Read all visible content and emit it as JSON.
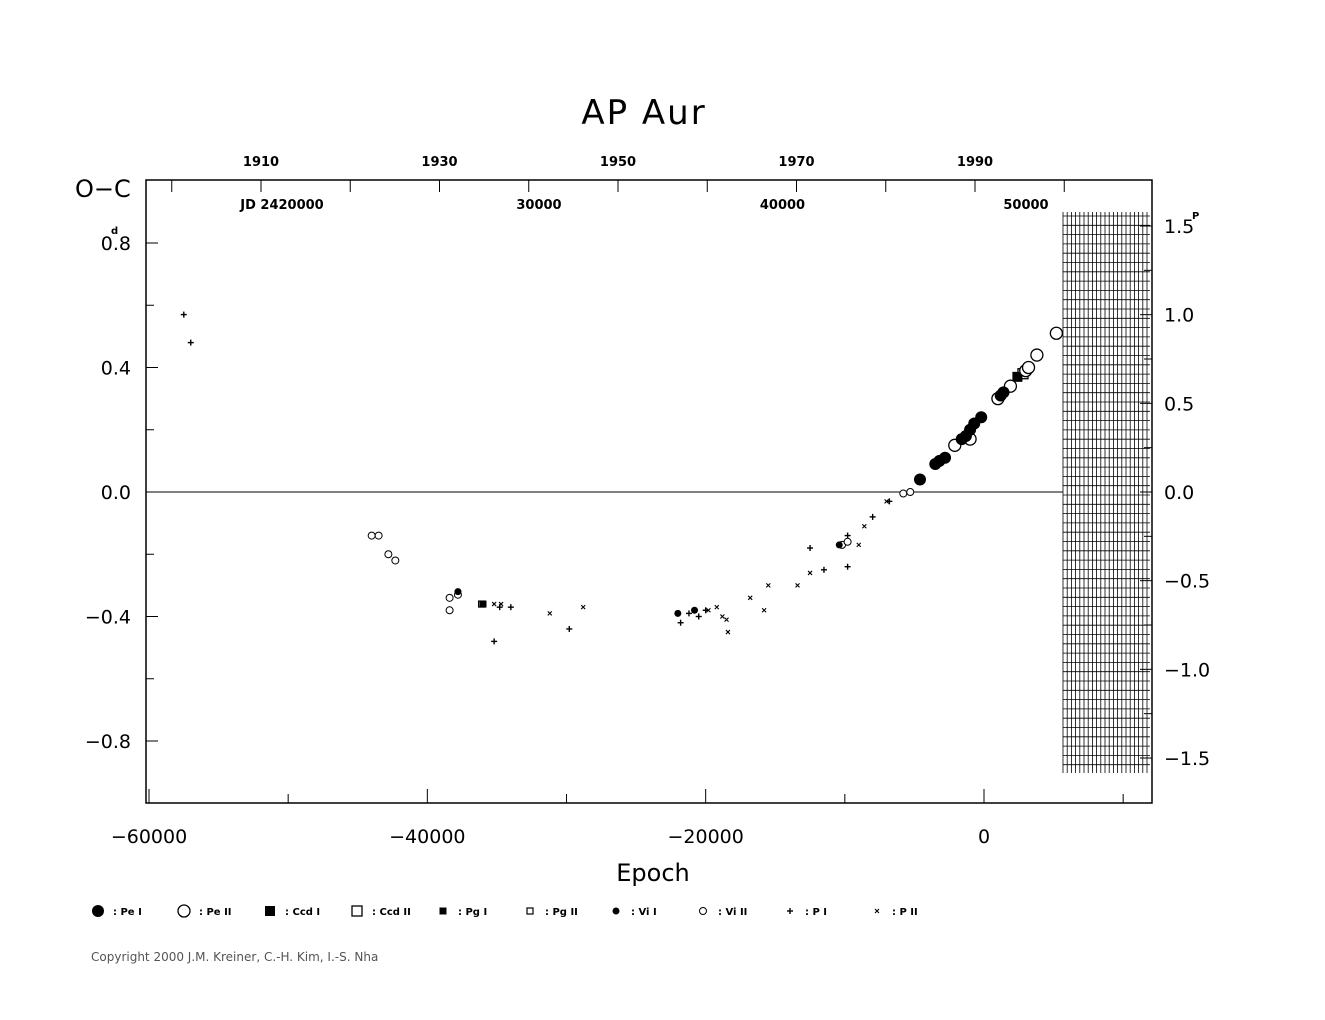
{
  "chart_data": {
    "type": "scatter",
    "title": "AP  Aur",
    "xlabel": "Epoch",
    "ylabel": "O−C",
    "y_unit": "d",
    "y2_unit": "P",
    "xlim": [
      -60000,
      12000
    ],
    "ylim": [
      -1.0,
      1.0
    ],
    "x_ticks": [
      -60000,
      -40000,
      -20000,
      0
    ],
    "x_tick_labels": [
      "−60000",
      "−40000",
      "−20000",
      "0"
    ],
    "y_ticks": [
      -0.8,
      -0.4,
      0.0,
      0.4,
      0.8
    ],
    "y_tick_labels": [
      "−0.8",
      "−0.4",
      "0.0",
      "0.4",
      "0.8"
    ],
    "y2_ticks": [
      -1.5,
      -1.0,
      -0.5,
      0.0,
      0.5,
      1.0,
      1.5
    ],
    "y2_tick_labels": [
      "−1.5",
      "−1.0",
      "−0.5",
      "0.0",
      "0.5",
      "1.0",
      "1.5"
    ],
    "top_year_ticks": [
      1910,
      1930,
      1950,
      1970,
      1990
    ],
    "top_jd_prefix": "JD  2420000",
    "top_jd_ticks": [
      "30000",
      "40000",
      "50000"
    ],
    "grid": false,
    "reference_line": 0.0,
    "series": [
      {
        "name": "Pe I",
        "marker": "filled-circle-large",
        "points": [
          [
            -4600,
            0.04
          ],
          [
            -3500,
            0.09
          ],
          [
            -3200,
            0.1
          ],
          [
            -2800,
            0.11
          ],
          [
            -1600,
            0.17
          ],
          [
            -1300,
            0.18
          ],
          [
            -1000,
            0.2
          ],
          [
            -700,
            0.22
          ],
          [
            -200,
            0.24
          ],
          [
            1200,
            0.31
          ],
          [
            1400,
            0.32
          ]
        ]
      },
      {
        "name": "Pe II",
        "marker": "open-circle-large",
        "points": [
          [
            -2100,
            0.15
          ],
          [
            -1000,
            0.17
          ],
          [
            1000,
            0.3
          ],
          [
            1900,
            0.34
          ],
          [
            3000,
            0.39
          ],
          [
            3200,
            0.4
          ],
          [
            3800,
            0.44
          ],
          [
            5200,
            0.51
          ]
        ]
      },
      {
        "name": "Ccd I",
        "marker": "filled-square",
        "points": [
          [
            2400,
            0.37
          ]
        ]
      },
      {
        "name": "Ccd II",
        "marker": "open-square",
        "points": [
          [
            2800,
            0.38
          ]
        ]
      },
      {
        "name": "Pg I",
        "marker": "filled-square-small",
        "points": [
          [
            -36000,
            -0.36
          ]
        ]
      },
      {
        "name": "Pg II",
        "marker": "open-square-small",
        "points": [
          [
            -36100,
            -0.36
          ]
        ]
      },
      {
        "name": "Vi I",
        "marker": "filled-circle-small",
        "points": [
          [
            -37800,
            -0.32
          ],
          [
            -22000,
            -0.39
          ],
          [
            -20800,
            -0.38
          ],
          [
            -10400,
            -0.17
          ]
        ]
      },
      {
        "name": "Vi II",
        "marker": "open-circle-small",
        "points": [
          [
            -44000,
            -0.14
          ],
          [
            -43500,
            -0.14
          ],
          [
            -42800,
            -0.2
          ],
          [
            -42300,
            -0.22
          ],
          [
            -38400,
            -0.34
          ],
          [
            -38400,
            -0.38
          ],
          [
            -37800,
            -0.33
          ],
          [
            -10200,
            -0.17
          ],
          [
            -9800,
            -0.16
          ],
          [
            -5800,
            -0.005
          ],
          [
            -5300,
            0.0
          ]
        ]
      },
      {
        "name": "P I",
        "marker": "plus",
        "points": [
          [
            -57500,
            0.57
          ],
          [
            -57000,
            0.48
          ],
          [
            -35200,
            -0.48
          ],
          [
            -34800,
            -0.37
          ],
          [
            -34000,
            -0.37
          ],
          [
            -29800,
            -0.44
          ],
          [
            -21800,
            -0.42
          ],
          [
            -21200,
            -0.39
          ],
          [
            -20500,
            -0.4
          ],
          [
            -20000,
            -0.38
          ],
          [
            -12500,
            -0.18
          ],
          [
            -11500,
            -0.25
          ],
          [
            -9800,
            -0.14
          ],
          [
            -9800,
            -0.24
          ],
          [
            -8000,
            -0.08
          ],
          [
            -6800,
            -0.03
          ]
        ]
      },
      {
        "name": "P II",
        "marker": "cross",
        "points": [
          [
            -35200,
            -0.36
          ],
          [
            -34700,
            -0.36
          ],
          [
            -31200,
            -0.39
          ],
          [
            -28800,
            -0.37
          ],
          [
            -19800,
            -0.38
          ],
          [
            -19200,
            -0.37
          ],
          [
            -18800,
            -0.4
          ],
          [
            -18500,
            -0.41
          ],
          [
            -18400,
            -0.45
          ],
          [
            -16800,
            -0.34
          ],
          [
            -15800,
            -0.38
          ],
          [
            -15500,
            -0.3
          ],
          [
            -13400,
            -0.3
          ],
          [
            -12500,
            -0.26
          ],
          [
            -9000,
            -0.17
          ],
          [
            -8600,
            -0.11
          ],
          [
            -7000,
            -0.03
          ]
        ]
      }
    ]
  },
  "legend": [
    {
      "label": ": Pe  I",
      "marker": "filled-circle-large"
    },
    {
      "label": ": Pe  II",
      "marker": "open-circle-large"
    },
    {
      "label": ": Ccd  I",
      "marker": "filled-square"
    },
    {
      "label": ": Ccd  II",
      "marker": "open-square"
    },
    {
      "label": ": Pg  I",
      "marker": "filled-square-small"
    },
    {
      "label": ": Pg  II",
      "marker": "open-square-small"
    },
    {
      "label": ": Vi  I",
      "marker": "filled-circle-small"
    },
    {
      "label": ": Vi  II",
      "marker": "open-circle-small"
    },
    {
      "label": ": P  I",
      "marker": "plus"
    },
    {
      "label": ": P  II",
      "marker": "cross"
    }
  ],
  "copyright": "Copyright 2000 J.M. Kreiner, C.-H. Kim, I.-S. Nha"
}
